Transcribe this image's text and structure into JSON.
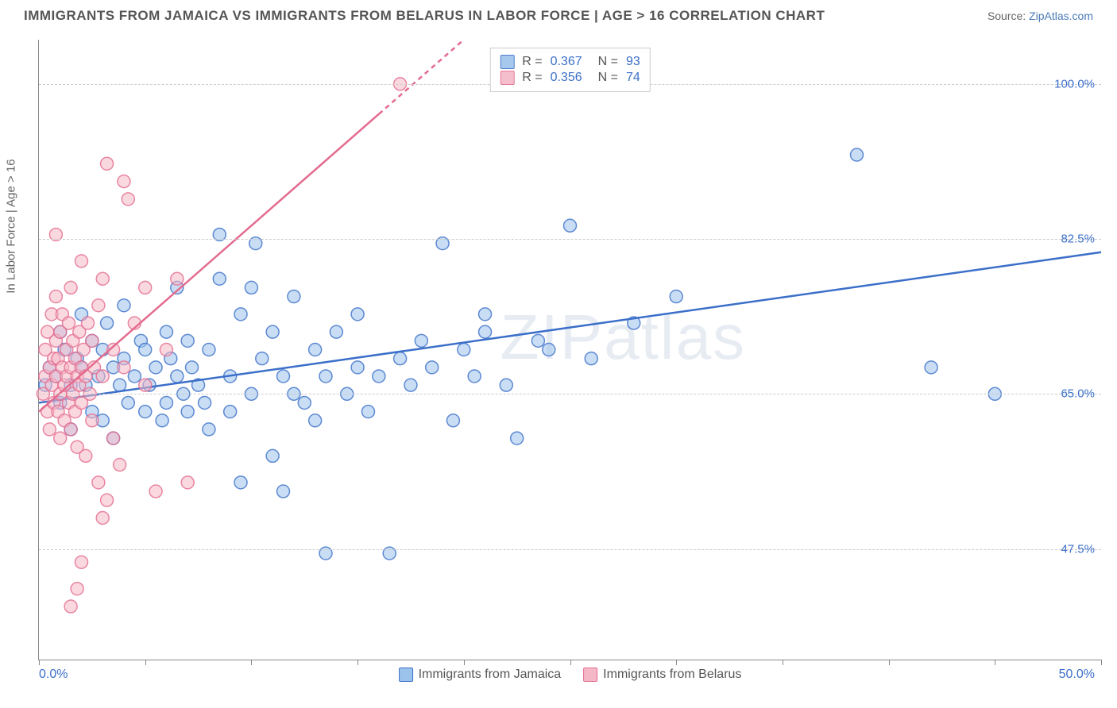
{
  "header": {
    "title": "IMMIGRANTS FROM JAMAICA VS IMMIGRANTS FROM BELARUS IN LABOR FORCE | AGE > 16 CORRELATION CHART",
    "source_prefix": "Source: ",
    "source_link": "ZipAtlas.com"
  },
  "chart": {
    "type": "scatter",
    "y_axis_label": "In Labor Force | Age > 16",
    "x_min": 0.0,
    "x_max": 50.0,
    "x_left_label": "0.0%",
    "x_right_label": "50.0%",
    "x_ticks": [
      0,
      5,
      10,
      15,
      20,
      25,
      30,
      35,
      40,
      45,
      50
    ],
    "y_min": 35.0,
    "y_max": 105.0,
    "y_gridlines": [
      47.5,
      65.0,
      82.5,
      100.0
    ],
    "y_tick_labels": [
      "47.5%",
      "65.0%",
      "82.5%",
      "100.0%"
    ],
    "marker_radius": 8,
    "marker_stroke_width": 1.5,
    "regression_stroke_width": 2.5,
    "background_color": "#ffffff",
    "grid_color": "#cccccc",
    "axis_color": "#888888",
    "tick_label_color": "#3b6fc9",
    "watermark_text": "ZIPatlas",
    "series": [
      {
        "name": "Immigrants from Jamaica",
        "fill_color": "#9cc3eb",
        "stroke_color": "#3b6fc9",
        "marker_opacity": 0.55,
        "R": "0.367",
        "N": "93",
        "regression": {
          "x1": 0,
          "y1": 64.0,
          "x2": 50,
          "y2": 81.0,
          "dashed_from_x": null
        },
        "points": [
          [
            0.3,
            66
          ],
          [
            0.5,
            68
          ],
          [
            0.8,
            67
          ],
          [
            1.0,
            72
          ],
          [
            1.0,
            64
          ],
          [
            1.2,
            70
          ],
          [
            1.5,
            66
          ],
          [
            1.5,
            61
          ],
          [
            1.8,
            69
          ],
          [
            2.0,
            68
          ],
          [
            2.0,
            74
          ],
          [
            2.2,
            66
          ],
          [
            2.5,
            71
          ],
          [
            2.5,
            63
          ],
          [
            2.8,
            67
          ],
          [
            3.0,
            70
          ],
          [
            3.0,
            62
          ],
          [
            3.2,
            73
          ],
          [
            3.5,
            68
          ],
          [
            3.5,
            60
          ],
          [
            3.8,
            66
          ],
          [
            4.0,
            69
          ],
          [
            4.0,
            75
          ],
          [
            4.2,
            64
          ],
          [
            4.5,
            67
          ],
          [
            4.8,
            71
          ],
          [
            5.0,
            63
          ],
          [
            5.0,
            70
          ],
          [
            5.2,
            66
          ],
          [
            5.5,
            68
          ],
          [
            5.8,
            62
          ],
          [
            6.0,
            72
          ],
          [
            6.0,
            64
          ],
          [
            6.2,
            69
          ],
          [
            6.5,
            67
          ],
          [
            6.5,
            77
          ],
          [
            6.8,
            65
          ],
          [
            7.0,
            63
          ],
          [
            7.0,
            71
          ],
          [
            7.2,
            68
          ],
          [
            7.5,
            66
          ],
          [
            7.8,
            64
          ],
          [
            8.0,
            70
          ],
          [
            8.0,
            61
          ],
          [
            8.5,
            78
          ],
          [
            8.5,
            83
          ],
          [
            9.0,
            67
          ],
          [
            9.0,
            63
          ],
          [
            9.5,
            55
          ],
          [
            9.5,
            74
          ],
          [
            10.0,
            77
          ],
          [
            10.0,
            65
          ],
          [
            10.2,
            82
          ],
          [
            10.5,
            69
          ],
          [
            11.0,
            58
          ],
          [
            11.0,
            72
          ],
          [
            11.5,
            54
          ],
          [
            11.5,
            67
          ],
          [
            12.0,
            65
          ],
          [
            12.0,
            76
          ],
          [
            12.5,
            64
          ],
          [
            13.0,
            70
          ],
          [
            13.0,
            62
          ],
          [
            13.5,
            67
          ],
          [
            13.5,
            47
          ],
          [
            14.0,
            72
          ],
          [
            14.5,
            65
          ],
          [
            15.0,
            68
          ],
          [
            15.0,
            74
          ],
          [
            15.5,
            63
          ],
          [
            16.0,
            67
          ],
          [
            16.5,
            47
          ],
          [
            17.0,
            69
          ],
          [
            17.5,
            66
          ],
          [
            18.0,
            71
          ],
          [
            18.5,
            68
          ],
          [
            19.0,
            82
          ],
          [
            19.5,
            62
          ],
          [
            20.0,
            70
          ],
          [
            20.5,
            67
          ],
          [
            21.0,
            74
          ],
          [
            21.0,
            72
          ],
          [
            22.0,
            66
          ],
          [
            22.5,
            60
          ],
          [
            23.5,
            71
          ],
          [
            24.0,
            70
          ],
          [
            25.0,
            84
          ],
          [
            26.0,
            69
          ],
          [
            28.0,
            73
          ],
          [
            30.0,
            76
          ],
          [
            38.5,
            92
          ],
          [
            42.0,
            68
          ],
          [
            45.0,
            65
          ]
        ]
      },
      {
        "name": "Immigrants from Belarus",
        "fill_color": "#f5b8c7",
        "stroke_color": "#e36b8e",
        "marker_opacity": 0.55,
        "R": "0.356",
        "N": "74",
        "regression": {
          "x1": 0,
          "y1": 63.0,
          "x2": 20,
          "y2": 105.0,
          "dashed_from_x": 16
        },
        "points": [
          [
            0.2,
            65
          ],
          [
            0.3,
            67
          ],
          [
            0.3,
            70
          ],
          [
            0.4,
            63
          ],
          [
            0.4,
            72
          ],
          [
            0.5,
            68
          ],
          [
            0.5,
            61
          ],
          [
            0.6,
            74
          ],
          [
            0.6,
            66
          ],
          [
            0.7,
            69
          ],
          [
            0.7,
            64
          ],
          [
            0.8,
            71
          ],
          [
            0.8,
            67
          ],
          [
            0.8,
            76
          ],
          [
            0.9,
            63
          ],
          [
            0.9,
            69
          ],
          [
            1.0,
            72
          ],
          [
            1.0,
            65
          ],
          [
            1.0,
            60
          ],
          [
            1.1,
            68
          ],
          [
            1.1,
            74
          ],
          [
            1.2,
            66
          ],
          [
            1.2,
            62
          ],
          [
            1.3,
            70
          ],
          [
            1.3,
            67
          ],
          [
            1.4,
            64
          ],
          [
            1.4,
            73
          ],
          [
            1.5,
            68
          ],
          [
            1.5,
            61
          ],
          [
            1.5,
            77
          ],
          [
            1.6,
            65
          ],
          [
            1.6,
            71
          ],
          [
            1.7,
            63
          ],
          [
            1.7,
            69
          ],
          [
            1.8,
            67
          ],
          [
            1.8,
            59
          ],
          [
            1.9,
            72
          ],
          [
            1.9,
            66
          ],
          [
            2.0,
            68
          ],
          [
            2.0,
            64
          ],
          [
            2.0,
            80
          ],
          [
            2.1,
            70
          ],
          [
            2.2,
            67
          ],
          [
            2.2,
            58
          ],
          [
            2.3,
            73
          ],
          [
            2.4,
            65
          ],
          [
            2.5,
            71
          ],
          [
            2.5,
            62
          ],
          [
            2.6,
            68
          ],
          [
            2.8,
            55
          ],
          [
            2.8,
            75
          ],
          [
            3.0,
            78
          ],
          [
            3.0,
            67
          ],
          [
            3.0,
            51
          ],
          [
            3.2,
            53
          ],
          [
            3.2,
            91
          ],
          [
            3.5,
            70
          ],
          [
            3.5,
            60
          ],
          [
            3.8,
            57
          ],
          [
            4.0,
            89
          ],
          [
            4.0,
            68
          ],
          [
            4.2,
            87
          ],
          [
            4.5,
            73
          ],
          [
            5.0,
            77
          ],
          [
            5.0,
            66
          ],
          [
            5.5,
            54
          ],
          [
            6.0,
            70
          ],
          [
            6.5,
            78
          ],
          [
            7.0,
            55
          ],
          [
            1.5,
            41
          ],
          [
            1.8,
            43
          ],
          [
            2.0,
            46
          ],
          [
            0.8,
            83
          ],
          [
            17.0,
            100
          ]
        ]
      }
    ],
    "legend_bottom": [
      {
        "label": "Immigrants from Jamaica",
        "fill": "#9cc3eb",
        "stroke": "#3b6fc9"
      },
      {
        "label": "Immigrants from Belarus",
        "fill": "#f5b8c7",
        "stroke": "#e36b8e"
      }
    ]
  }
}
